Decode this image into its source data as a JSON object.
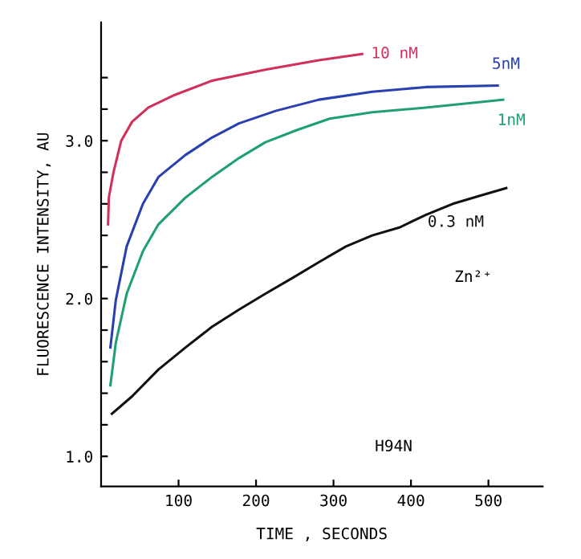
{
  "chart_data": {
    "type": "line",
    "xlabel": "TIME , SECONDS",
    "ylabel": "FLUORESCENCE INTENSITY, AU",
    "xlim": [
      0,
      570
    ],
    "ylim": [
      0.81,
      3.75
    ],
    "xticks": [
      100,
      200,
      300,
      400,
      500
    ],
    "yticks": [
      {
        "value": 1.0,
        "label": "1.0"
      },
      {
        "value": 1.2,
        "label": null
      },
      {
        "value": 1.4,
        "label": null
      },
      {
        "value": 1.6,
        "label": null
      },
      {
        "value": 1.8,
        "label": null
      },
      {
        "value": 2.0,
        "label": "2.0"
      },
      {
        "value": 2.2,
        "label": null
      },
      {
        "value": 2.4,
        "label": null
      },
      {
        "value": 2.6,
        "label": null
      },
      {
        "value": 2.8,
        "label": null
      },
      {
        "value": 3.0,
        "label": "3.0"
      },
      {
        "value": 3.2,
        "label": null
      },
      {
        "value": 3.4,
        "label": null
      }
    ],
    "grid": false,
    "legend": false,
    "marker": "none",
    "line_style": "solid",
    "series": [
      {
        "name": "10 nM",
        "color": "#d0305a",
        "x": [
          9,
          10,
          16,
          26,
          40,
          61,
          95,
          143,
          212,
          281,
          337
        ],
        "values": [
          2.47,
          2.64,
          2.8,
          3.0,
          3.12,
          3.21,
          3.29,
          3.38,
          3.45,
          3.51,
          3.55
        ]
      },
      {
        "name": "5nM",
        "color": "#2840b0",
        "x": [
          12,
          19,
          33,
          54,
          74,
          109,
          143,
          178,
          226,
          281,
          350,
          419,
          512
        ],
        "values": [
          1.69,
          1.99,
          2.33,
          2.6,
          2.77,
          2.91,
          3.02,
          3.11,
          3.19,
          3.26,
          3.31,
          3.34,
          3.35
        ]
      },
      {
        "name": "1nM",
        "color": "#20a070",
        "x": [
          12,
          19,
          33,
          54,
          74,
          109,
          143,
          178,
          212,
          254,
          295,
          350,
          419,
          519
        ],
        "values": [
          1.45,
          1.72,
          2.03,
          2.3,
          2.47,
          2.64,
          2.77,
          2.89,
          2.99,
          3.07,
          3.14,
          3.18,
          3.21,
          3.26
        ]
      },
      {
        "name": "0.3 nM",
        "color": "#111111",
        "x": [
          14,
          40,
          74,
          109,
          143,
          178,
          212,
          247,
          281,
          316,
          350,
          385,
          419,
          454,
          488,
          523
        ],
        "values": [
          1.27,
          1.38,
          1.55,
          1.69,
          1.82,
          1.93,
          2.03,
          2.13,
          2.23,
          2.33,
          2.4,
          2.45,
          2.53,
          2.6,
          2.65,
          2.7
        ]
      }
    ],
    "annotations": [
      "Zn²⁺",
      "H94N"
    ]
  }
}
